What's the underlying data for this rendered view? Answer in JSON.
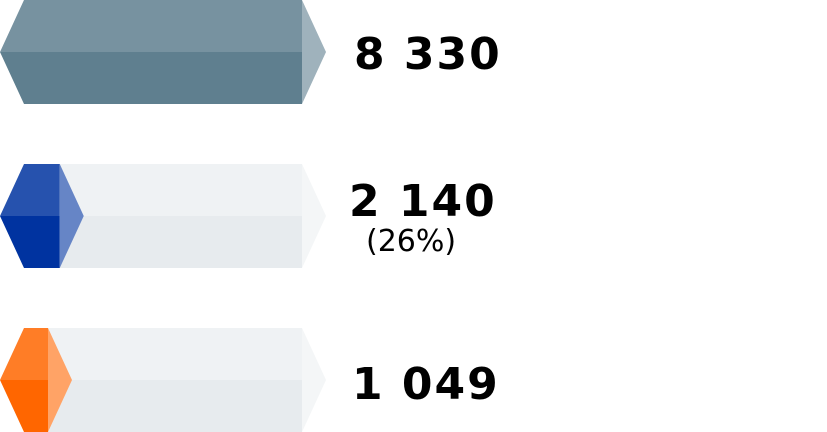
{
  "chart_data": {
    "type": "bar",
    "orientation": "horizontal",
    "style": "3d-prism",
    "categories": [
      "",
      "",
      ""
    ],
    "values": [
      8330,
      2140,
      1049
    ],
    "value_labels": [
      "8 330",
      "2 140",
      "1 049"
    ],
    "share_labels": [
      "",
      "(26%)",
      ""
    ],
    "colors": [
      "#5f7f8f",
      "#0033a0",
      "#ff6600"
    ],
    "track_color": "#e7ebee",
    "max": 8330,
    "title": "",
    "xlabel": "",
    "ylabel": "",
    "grid": false,
    "legend": "none"
  }
}
